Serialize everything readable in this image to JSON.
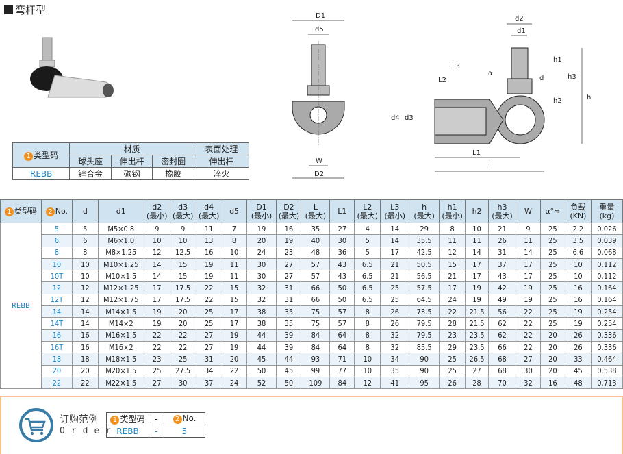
{
  "title": "弯杆型",
  "material_table": {
    "type_header": "类型码",
    "material_header": "材质",
    "surface_header": "表面处理",
    "sub": [
      "球头座",
      "伸出杆",
      "密封圈",
      "伸出杆"
    ],
    "row": [
      "REBB",
      "锌合金",
      "碳钢",
      "橡胶",
      "淬火"
    ]
  },
  "drawing_labels": {
    "D1": "D1",
    "d5": "d5",
    "W": "W",
    "D2": "D2",
    "d2": "d2",
    "d1": "d1",
    "h": "h",
    "h1": "h1",
    "h2": "h2",
    "h3": "h3",
    "d": "d",
    "L3": "L3",
    "L2": "L2",
    "alpha": "α",
    "d4": "d4",
    "d3": "d3",
    "L1": "L1",
    "L": "L"
  },
  "spec_table": {
    "headers": [
      [
        "类型码",
        ""
      ],
      [
        "No.",
        ""
      ],
      [
        "d",
        ""
      ],
      [
        "d1",
        ""
      ],
      [
        "d2",
        "(最小)"
      ],
      [
        "d3",
        "(最大)"
      ],
      [
        "d4",
        "(最大)"
      ],
      [
        "d5",
        ""
      ],
      [
        "D1",
        "(最小)"
      ],
      [
        "D2",
        "(最大)"
      ],
      [
        "L",
        "(最大)"
      ],
      [
        "L1",
        ""
      ],
      [
        "L2",
        "(最大)"
      ],
      [
        "L3",
        "(最小)"
      ],
      [
        "h",
        "(最大)"
      ],
      [
        "h1",
        "(最小)"
      ],
      [
        "h2",
        ""
      ],
      [
        "h3",
        "(最大)"
      ],
      [
        "W",
        ""
      ],
      [
        "α°≈",
        ""
      ],
      [
        "负载",
        "(KN)"
      ],
      [
        "重量",
        "(kg)"
      ]
    ],
    "type": "REBB",
    "rows": [
      [
        "5",
        "5",
        "M5×0.8",
        "9",
        "9",
        "11",
        "7",
        "19",
        "16",
        "35",
        "27",
        "4",
        "14",
        "29",
        "8",
        "10",
        "21",
        "9",
        "25",
        "2.2",
        "0.026"
      ],
      [
        "6",
        "6",
        "M6×1.0",
        "10",
        "10",
        "13",
        "8",
        "20",
        "19",
        "40",
        "30",
        "5",
        "14",
        "35.5",
        "11",
        "11",
        "26",
        "11",
        "25",
        "3.5",
        "0.039"
      ],
      [
        "8",
        "8",
        "M8×1.25",
        "12",
        "12.5",
        "16",
        "10",
        "24",
        "23",
        "48",
        "36",
        "5",
        "17",
        "42.5",
        "12",
        "14",
        "31",
        "14",
        "25",
        "6.6",
        "0.068"
      ],
      [
        "10",
        "10",
        "M10×1.25",
        "14",
        "15",
        "19",
        "11",
        "30",
        "27",
        "57",
        "43",
        "6.5",
        "21",
        "50.5",
        "15",
        "17",
        "37",
        "17",
        "25",
        "10",
        "0.112"
      ],
      [
        "10T",
        "10",
        "M10×1.5",
        "14",
        "15",
        "19",
        "11",
        "30",
        "27",
        "57",
        "43",
        "6.5",
        "21",
        "56.5",
        "21",
        "17",
        "43",
        "17",
        "25",
        "10",
        "0.112"
      ],
      [
        "12",
        "12",
        "M12×1.25",
        "17",
        "17.5",
        "22",
        "15",
        "32",
        "31",
        "66",
        "50",
        "6.5",
        "25",
        "57.5",
        "17",
        "19",
        "42",
        "19",
        "25",
        "16",
        "0.164"
      ],
      [
        "12T",
        "12",
        "M12×1.75",
        "17",
        "17.5",
        "22",
        "15",
        "32",
        "31",
        "66",
        "50",
        "6.5",
        "25",
        "64.5",
        "24",
        "19",
        "49",
        "19",
        "25",
        "16",
        "0.164"
      ],
      [
        "14",
        "14",
        "M14×1.5",
        "19",
        "20",
        "25",
        "17",
        "38",
        "35",
        "75",
        "57",
        "8",
        "26",
        "73.5",
        "22",
        "21.5",
        "56",
        "22",
        "25",
        "19",
        "0.254"
      ],
      [
        "14T",
        "14",
        "M14×2",
        "19",
        "20",
        "25",
        "17",
        "38",
        "35",
        "75",
        "57",
        "8",
        "26",
        "79.5",
        "28",
        "21.5",
        "62",
        "22",
        "25",
        "19",
        "0.254"
      ],
      [
        "16",
        "16",
        "M16×1.5",
        "22",
        "22",
        "27",
        "19",
        "44",
        "39",
        "84",
        "64",
        "8",
        "32",
        "79.5",
        "23",
        "23.5",
        "62",
        "22",
        "20",
        "26",
        "0.336"
      ],
      [
        "16T",
        "16",
        "M16×2",
        "22",
        "22",
        "27",
        "19",
        "44",
        "39",
        "84",
        "64",
        "8",
        "32",
        "85.5",
        "29",
        "23.5",
        "66",
        "22",
        "20",
        "26",
        "0.336"
      ],
      [
        "18",
        "18",
        "M18×1.5",
        "23",
        "25",
        "31",
        "20",
        "45",
        "44",
        "93",
        "71",
        "10",
        "34",
        "90",
        "25",
        "26.5",
        "68",
        "27",
        "20",
        "33",
        "0.464"
      ],
      [
        "20",
        "20",
        "M20×1.5",
        "25",
        "27.5",
        "34",
        "22",
        "50",
        "45",
        "99",
        "77",
        "10",
        "35",
        "90",
        "25",
        "27",
        "68",
        "30",
        "20",
        "45",
        "0.538"
      ],
      [
        "22",
        "22",
        "M22×1.5",
        "27",
        "30",
        "37",
        "24",
        "52",
        "50",
        "109",
        "84",
        "12",
        "41",
        "95",
        "26",
        "28",
        "70",
        "32",
        "16",
        "48",
        "0.713"
      ]
    ]
  },
  "order": {
    "title_cn": "订购范例",
    "title_en": "Order",
    "h1": "类型码",
    "dash": "-",
    "h2": "No.",
    "v1": "REBB",
    "v2": "5"
  },
  "colors": {
    "header_bg": "#cfe3f1",
    "accent_blue": "#1a86c8",
    "badge_orange": "#f0901e",
    "order_border": "#f3c08e",
    "cart_blue": "#3a7ca8"
  }
}
